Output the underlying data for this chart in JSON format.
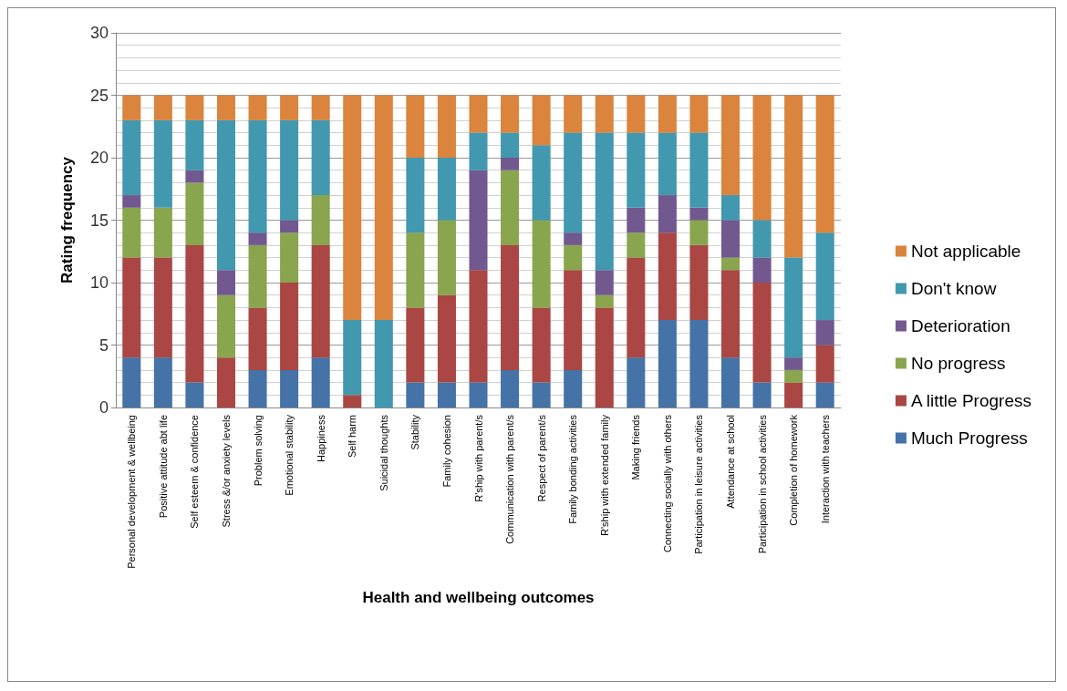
{
  "chart_data": {
    "type": "bar",
    "stacked": true,
    "xlabel": "Health and wellbeing outcomes",
    "ylabel": "Rating frequency",
    "categories": [
      "Personal development & wellbeing",
      "Positive attitude abt life",
      "Self esteem & confidence",
      "Stress &/or anxiety levels",
      "Problem solving",
      "Emotional stability",
      "Happiness",
      "Self harm",
      "Suicidal thoughts",
      "Stability",
      "Family cohesion",
      "R'ship with parent/s",
      "Communication with parent/s",
      "Respect of parent/s",
      "Family bonding activities",
      "R'ship with extended family",
      "Making friends",
      "Connecting socially with others",
      "Participation in leisure activities",
      "Attendance at school",
      "Participation in school activities",
      "Completion of homework",
      "Interaction with teachers"
    ],
    "series": [
      {
        "name": "Much Progress",
        "color": "#4572a7",
        "values": [
          4,
          4,
          2,
          0,
          3,
          3,
          4,
          0,
          0,
          2,
          2,
          2,
          3,
          2,
          3,
          0,
          4,
          7,
          7,
          4,
          2,
          0,
          2
        ]
      },
      {
        "name": "A little Progress",
        "color": "#aa4643",
        "values": [
          8,
          8,
          11,
          4,
          5,
          7,
          9,
          1,
          0,
          6,
          7,
          9,
          10,
          6,
          8,
          8,
          8,
          7,
          6,
          7,
          8,
          2,
          3
        ]
      },
      {
        "name": "No progress",
        "color": "#89a54e",
        "values": [
          4,
          4,
          5,
          5,
          5,
          4,
          4,
          0,
          0,
          6,
          6,
          0,
          6,
          7,
          2,
          1,
          2,
          0,
          2,
          1,
          0,
          1,
          0
        ]
      },
      {
        "name": "Deterioration",
        "color": "#71588f",
        "values": [
          1,
          0,
          1,
          2,
          1,
          1,
          0,
          0,
          0,
          0,
          0,
          8,
          1,
          0,
          1,
          2,
          2,
          3,
          1,
          3,
          2,
          1,
          2
        ]
      },
      {
        "name": "Don't know",
        "color": "#4198af",
        "values": [
          6,
          7,
          4,
          12,
          9,
          8,
          6,
          6,
          7,
          6,
          5,
          3,
          2,
          6,
          8,
          11,
          6,
          5,
          6,
          2,
          3,
          8,
          7
        ]
      },
      {
        "name": "Not applicable",
        "color": "#db843d",
        "values": [
          2,
          2,
          2,
          2,
          2,
          2,
          2,
          18,
          18,
          5,
          5,
          3,
          3,
          4,
          3,
          3,
          3,
          3,
          3,
          8,
          10,
          13,
          11
        ]
      }
    ],
    "ylim": [
      0,
      30
    ],
    "yticks": [
      0,
      5,
      10,
      15,
      20,
      25,
      30
    ],
    "grid": "y",
    "legend": "right"
  }
}
